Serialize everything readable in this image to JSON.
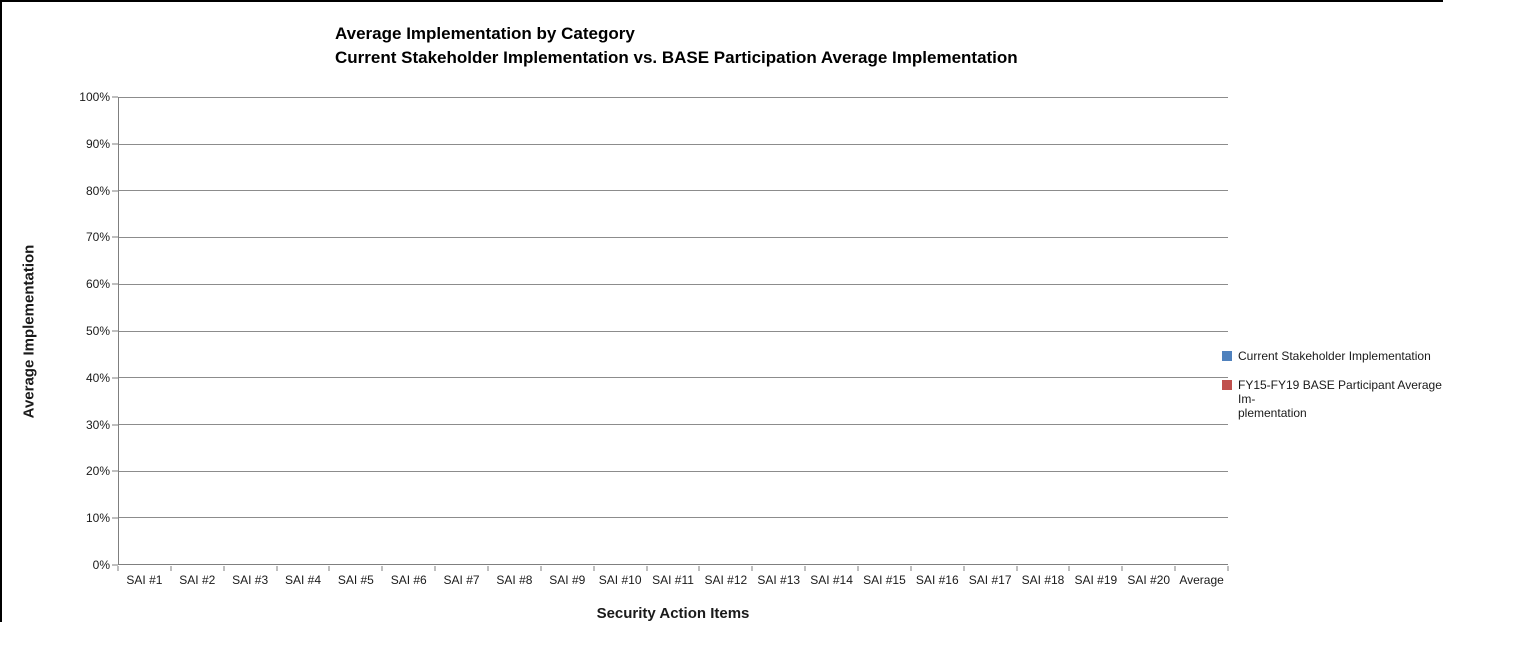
{
  "title": {
    "line1": "Average Implementation by Category",
    "line2": "Current Stakeholder Implementation vs. BASE Participation Average Implementation"
  },
  "axes": {
    "y_title": "Average Implementation",
    "x_title": "Security Action Items",
    "y_ticks_top_down": [
      "100%",
      "90%",
      "80%",
      "70%",
      "60%",
      "50%",
      "40%",
      "30%",
      "20%",
      "10%",
      "0%"
    ],
    "x_categories": [
      "SAI #1",
      "SAI #2",
      "SAI #3",
      "SAI #4",
      "SAI #5",
      "SAI #6",
      "SAI #7",
      "SAI #8",
      "SAI #9",
      "SAI #10",
      "SAI #11",
      "SAI #12",
      "SAI #13",
      "SAI #14",
      "SAI #15",
      "SAI #16",
      "SAI #17",
      "SAI #18",
      "SAI #19",
      "SAI #20",
      "Average"
    ]
  },
  "legend": {
    "items": [
      {
        "label": "Current Stakeholder Implementation",
        "lines": [
          "Current Stakeholder Implementation",
          ""
        ],
        "color": "#4F81BD"
      },
      {
        "label": "FY15-FY19 BASE Participant Average Implementation",
        "lines": [
          "FY15-FY19 BASE Participant Average Im-",
          "plementation"
        ],
        "color": "#C0504D"
      }
    ]
  },
  "colors": {
    "gridline": "#8c8c8c",
    "axis_line": "#7f7f7f",
    "text": "#1a1a1a",
    "series1": "#4F81BD",
    "series2": "#C0504D",
    "frame_border": "#000000"
  },
  "chart_data": {
    "type": "bar",
    "title": "Average Implementation by Category",
    "subtitle": "Current Stakeholder Implementation vs. BASE Participation Average Implementation",
    "xlabel": "Security Action Items",
    "ylabel": "Average Implementation",
    "categories": [
      "SAI #1",
      "SAI #2",
      "SAI #3",
      "SAI #4",
      "SAI #5",
      "SAI #6",
      "SAI #7",
      "SAI #8",
      "SAI #9",
      "SAI #10",
      "SAI #11",
      "SAI #12",
      "SAI #13",
      "SAI #14",
      "SAI #15",
      "SAI #16",
      "SAI #17",
      "SAI #18",
      "SAI #19",
      "SAI #20",
      "Average"
    ],
    "series": [
      {
        "name": "Current Stakeholder Implementation",
        "color": "#4F81BD",
        "values": [
          0,
          0,
          0,
          0,
          0,
          0,
          0,
          0,
          0,
          0,
          0,
          0,
          0,
          0,
          0,
          0,
          0,
          0,
          0,
          0,
          0
        ]
      },
      {
        "name": "FY15-FY19 BASE Participant Average Implementation",
        "color": "#C0504D",
        "values": [
          0,
          0,
          0,
          0,
          0,
          0,
          0,
          0,
          0,
          0,
          0,
          0,
          0,
          0,
          0,
          0,
          0,
          0,
          0,
          0,
          0
        ]
      }
    ],
    "ylim": [
      0,
      1
    ],
    "y_tick_format": "percent",
    "y_tick_step": 0.1,
    "grid": true,
    "legend_position": "right",
    "note": "No bars rendered; all series values are 0 / empty"
  }
}
